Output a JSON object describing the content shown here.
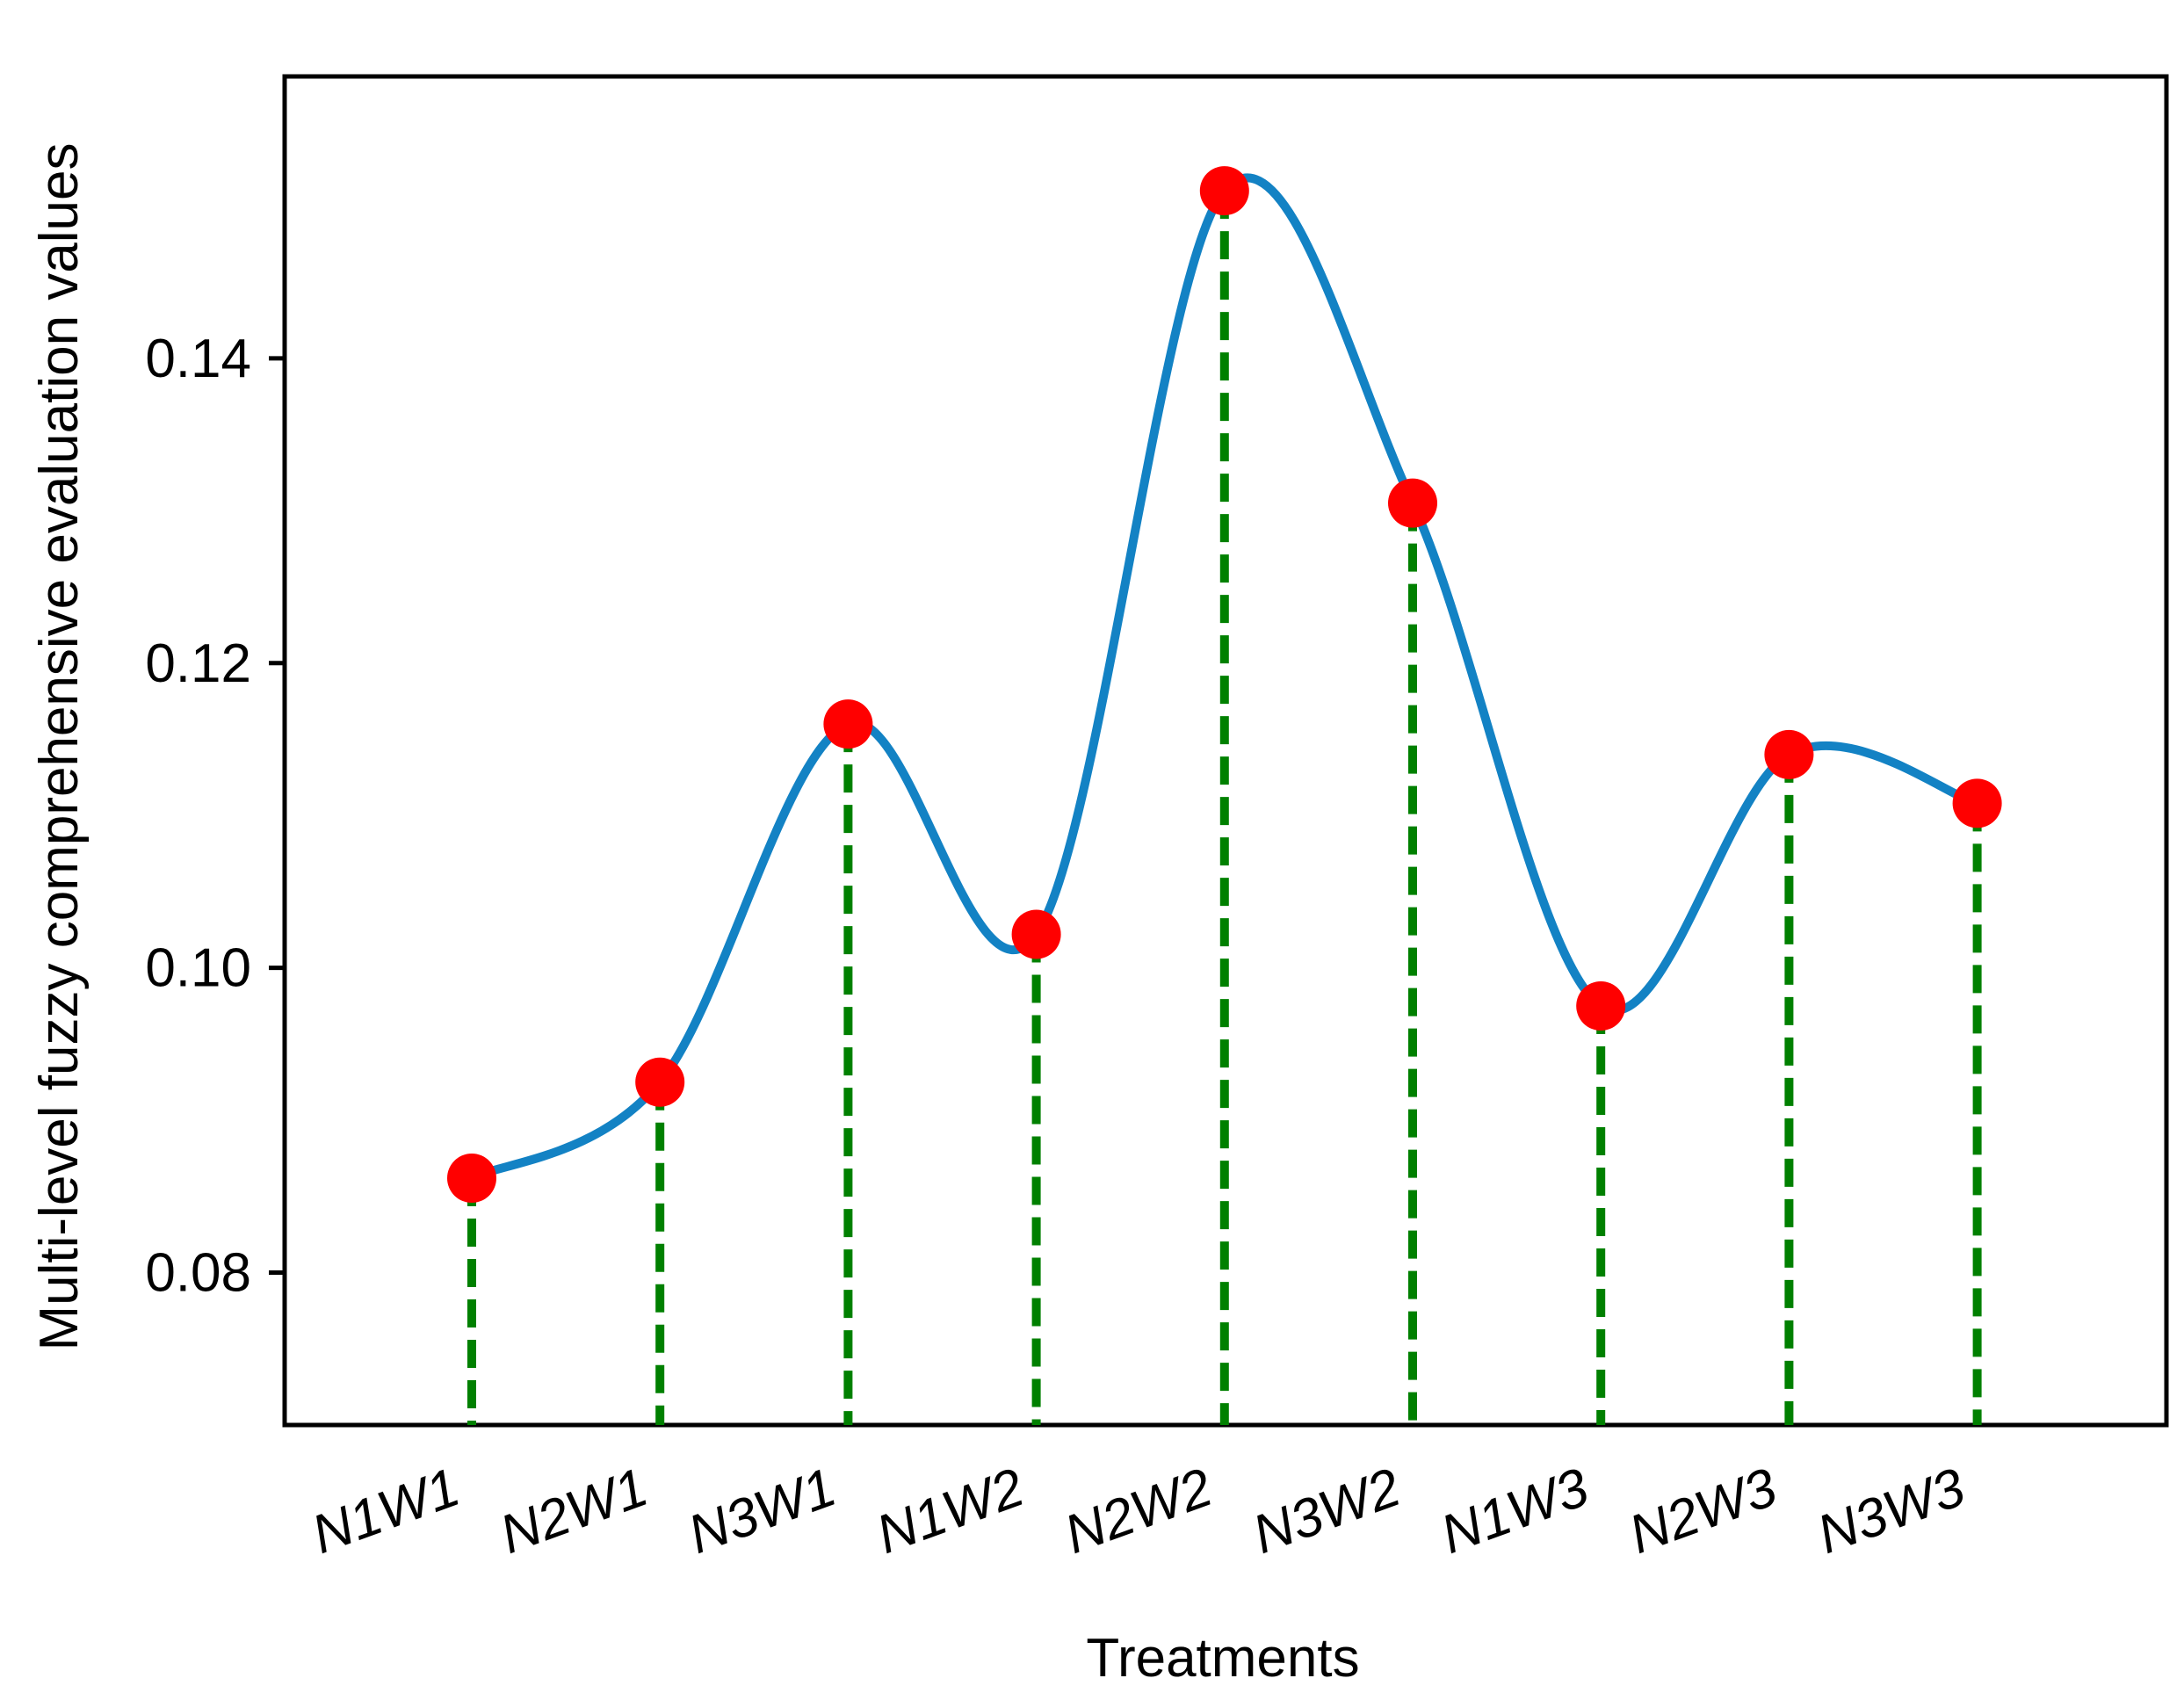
{
  "chart_data": {
    "type": "line",
    "title": "",
    "xlabel": "Treatments",
    "ylabel": "Multi-level fuzzy comprehensive evaluation values",
    "categories": [
      "N1W1",
      "N2W1",
      "N3W1",
      "N1W2",
      "N2W2",
      "N3W2",
      "N1W3",
      "N2W3",
      "N3W3"
    ],
    "series": [
      {
        "values": [
          0.0862,
          0.0925,
          0.116,
          0.1022,
          0.151,
          0.1305,
          0.0975,
          0.114,
          0.1108
        ]
      }
    ],
    "yticks": [
      0.08,
      0.1,
      0.12,
      0.14
    ],
    "ytick_labels": [
      "0.08",
      "0.10",
      "0.12",
      "0.14"
    ],
    "ylim": [
      0.07,
      0.1585
    ],
    "grid": false,
    "smoothed_curve": true,
    "drop_lines": true,
    "colors": {
      "curve": "#1382c4",
      "marker": "#ff0000",
      "drop_line": "#008000",
      "axes": "#000000"
    }
  }
}
